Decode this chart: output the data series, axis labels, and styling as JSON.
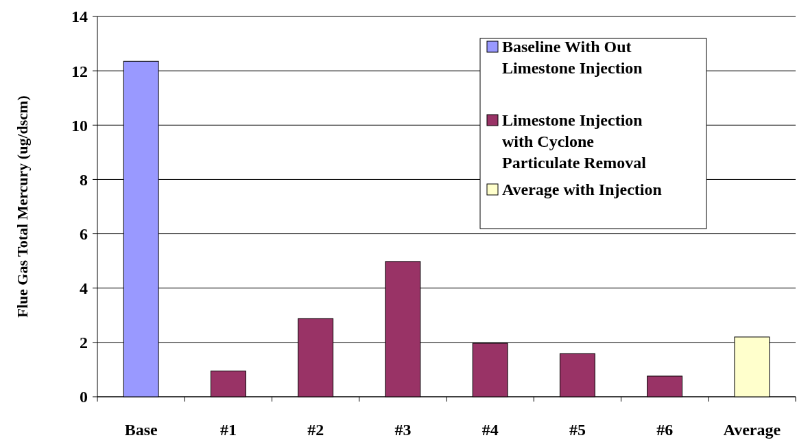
{
  "chart_data": {
    "type": "bar",
    "ylabel": "Flue Gas Total Mercury (ug/dscm)",
    "categories": [
      "Base",
      "#1",
      "#2",
      "#3",
      "#4",
      "#5",
      "#6",
      "Average"
    ],
    "series": [
      {
        "name": "Baseline With Out Limestone Injection",
        "color": "#9999ff",
        "values": [
          12.35,
          null,
          null,
          null,
          null,
          null,
          null,
          null
        ]
      },
      {
        "name": "Limestone Injection with Cyclone Particulate Removal",
        "color": "#993366",
        "values": [
          null,
          0.95,
          2.88,
          4.98,
          1.97,
          1.59,
          0.76,
          null
        ]
      },
      {
        "name": "Average with Injection",
        "color": "#ffffcc",
        "values": [
          null,
          null,
          null,
          null,
          null,
          null,
          null,
          2.2
        ]
      }
    ],
    "ylim": [
      0,
      14
    ],
    "yticks": [
      0,
      2,
      4,
      6,
      8,
      10,
      12,
      14
    ],
    "grid": "y",
    "legend": "top right"
  }
}
